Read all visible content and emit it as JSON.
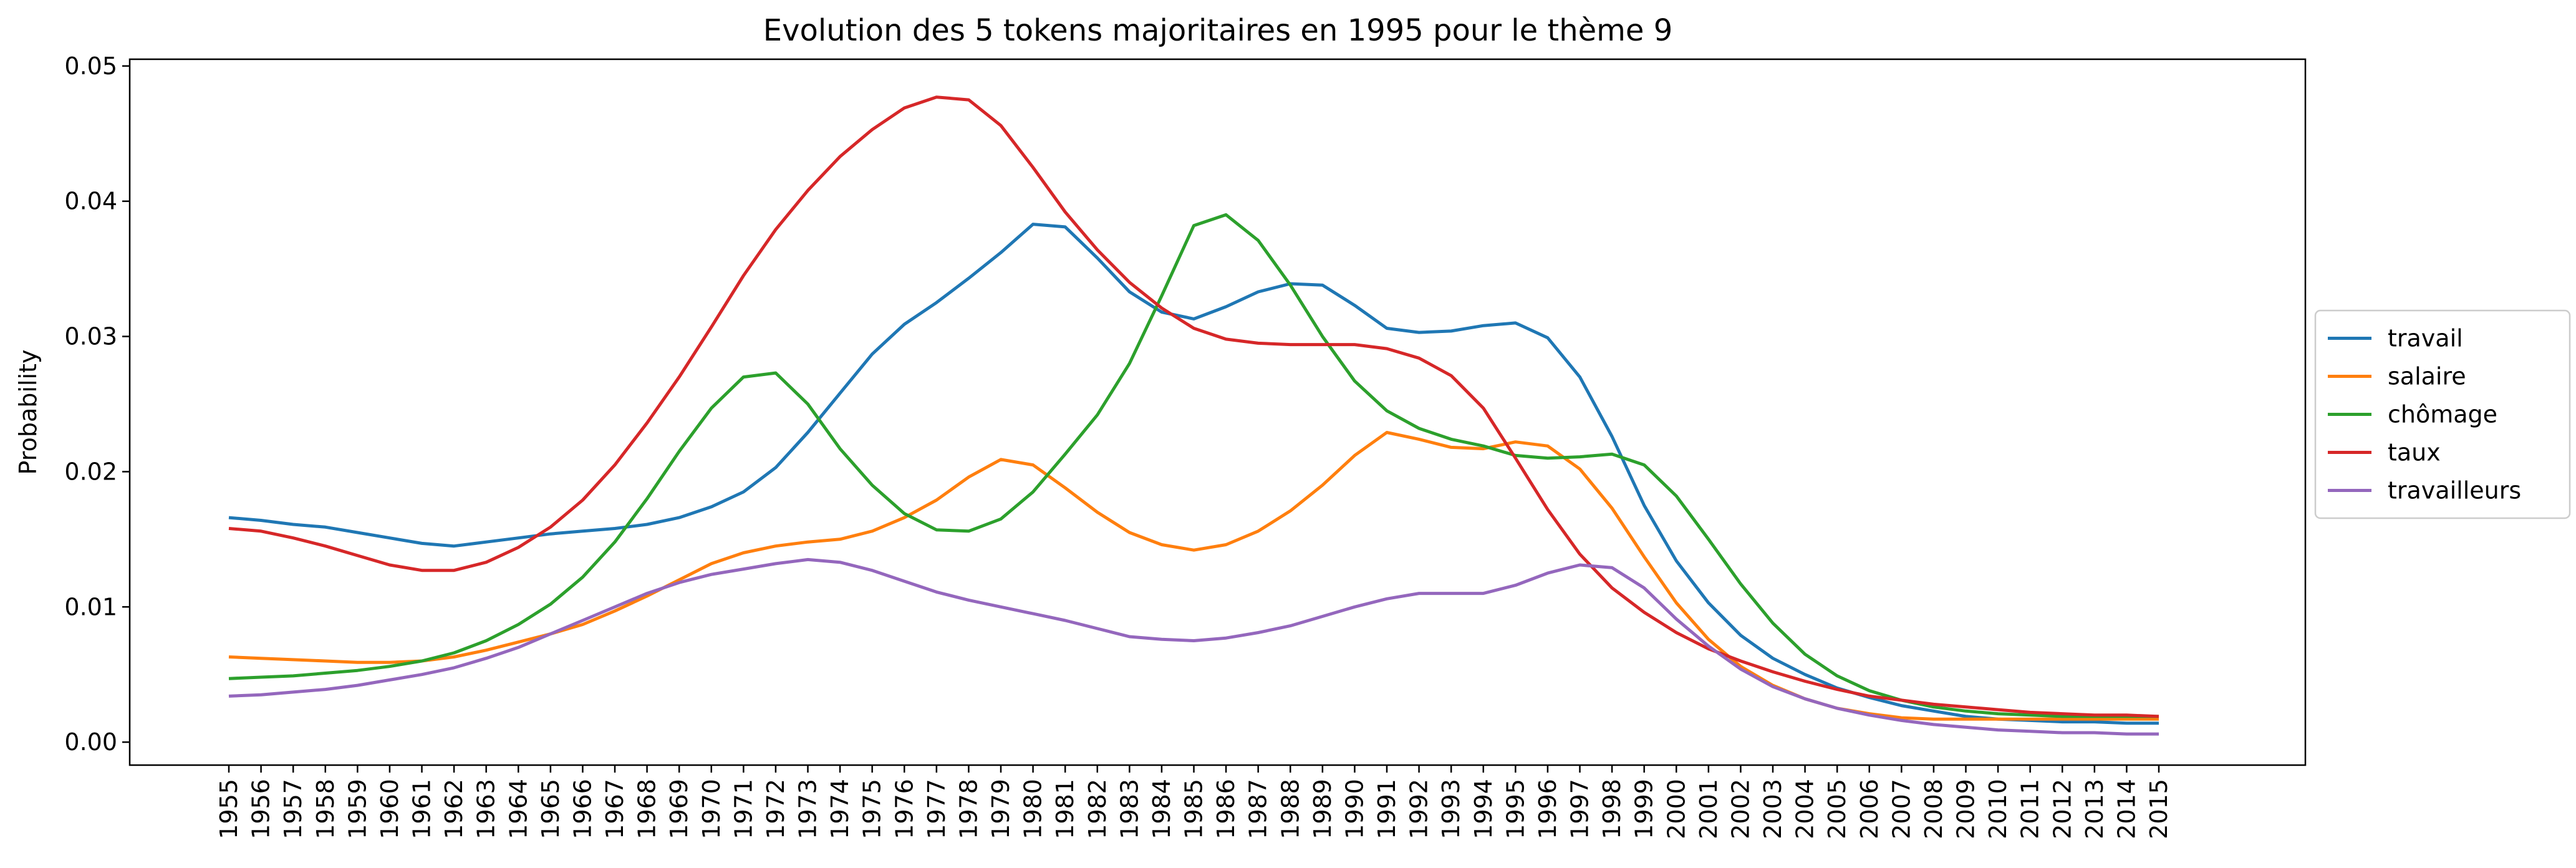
{
  "chart_data": {
    "type": "line",
    "title": "Evolution des 5 tokens majoritaires en 1995 pour le thème 9",
    "xlabel": "",
    "ylabel": "Probability",
    "ylim": [
      -0.0017,
      0.0505
    ],
    "yticks": [
      "0.00",
      "0.01",
      "0.02",
      "0.03",
      "0.04",
      "0.05"
    ],
    "grid": false,
    "legend_position": "center-right outside",
    "x": [
      "1955",
      "1956",
      "1957",
      "1958",
      "1959",
      "1960",
      "1961",
      "1962",
      "1963",
      "1964",
      "1965",
      "1966",
      "1967",
      "1968",
      "1969",
      "1970",
      "1971",
      "1972",
      "1973",
      "1974",
      "1975",
      "1976",
      "1977",
      "1978",
      "1979",
      "1980",
      "1981",
      "1982",
      "1983",
      "1984",
      "1985",
      "1986",
      "1987",
      "1988",
      "1989",
      "1990",
      "1991",
      "1992",
      "1993",
      "1994",
      "1995",
      "1996",
      "1997",
      "1998",
      "1999",
      "2000",
      "2001",
      "2002",
      "2003",
      "2004",
      "2005",
      "2006",
      "2007",
      "2008",
      "2009",
      "2010",
      "2011",
      "2012",
      "2013",
      "2014",
      "2015"
    ],
    "series": [
      {
        "name": "travail",
        "color": "#1f77b4",
        "values": [
          0.0166,
          0.0164,
          0.0161,
          0.0159,
          0.0155,
          0.0151,
          0.0147,
          0.0145,
          0.0148,
          0.0151,
          0.0154,
          0.0156,
          0.0158,
          0.0161,
          0.0166,
          0.0174,
          0.0185,
          0.0203,
          0.0229,
          0.0258,
          0.0287,
          0.0309,
          0.0325,
          0.0343,
          0.0362,
          0.0383,
          0.0381,
          0.0358,
          0.0333,
          0.0318,
          0.0313,
          0.0322,
          0.0333,
          0.0339,
          0.0338,
          0.0323,
          0.0306,
          0.0303,
          0.0304,
          0.0308,
          0.031,
          0.0299,
          0.027,
          0.0226,
          0.0175,
          0.0134,
          0.0103,
          0.0079,
          0.0062,
          0.005,
          0.004,
          0.0033,
          0.0027,
          0.0023,
          0.0019,
          0.0017,
          0.0016,
          0.0015,
          0.0015,
          0.0014,
          0.0014
        ]
      },
      {
        "name": "salaire",
        "color": "#ff7f0e",
        "values": [
          0.0063,
          0.0062,
          0.0061,
          0.006,
          0.0059,
          0.0059,
          0.006,
          0.0063,
          0.0068,
          0.0074,
          0.008,
          0.0087,
          0.0097,
          0.0108,
          0.012,
          0.0132,
          0.014,
          0.0145,
          0.0148,
          0.015,
          0.0156,
          0.0166,
          0.0179,
          0.0196,
          0.0209,
          0.0205,
          0.0188,
          0.017,
          0.0155,
          0.0146,
          0.0142,
          0.0146,
          0.0156,
          0.0171,
          0.019,
          0.0212,
          0.0229,
          0.0224,
          0.0218,
          0.0217,
          0.0222,
          0.0219,
          0.0202,
          0.0173,
          0.0137,
          0.0103,
          0.0076,
          0.0056,
          0.0042,
          0.0032,
          0.0025,
          0.0021,
          0.0018,
          0.0017,
          0.0017,
          0.0017,
          0.0017,
          0.0017,
          0.0017,
          0.0017,
          0.0017
        ]
      },
      {
        "name": "chômage",
        "color": "#2ca02c",
        "values": [
          0.0047,
          0.0048,
          0.0049,
          0.0051,
          0.0053,
          0.0056,
          0.006,
          0.0066,
          0.0075,
          0.0087,
          0.0102,
          0.0122,
          0.0148,
          0.018,
          0.0215,
          0.0247,
          0.027,
          0.0273,
          0.025,
          0.0217,
          0.019,
          0.0169,
          0.0157,
          0.0156,
          0.0165,
          0.0185,
          0.0213,
          0.0242,
          0.028,
          0.033,
          0.0382,
          0.039,
          0.0371,
          0.0338,
          0.03,
          0.0267,
          0.0245,
          0.0232,
          0.0224,
          0.0219,
          0.0212,
          0.021,
          0.0211,
          0.0213,
          0.0205,
          0.0182,
          0.015,
          0.0117,
          0.0088,
          0.0065,
          0.0049,
          0.0038,
          0.0031,
          0.0026,
          0.0023,
          0.0021,
          0.002,
          0.0019,
          0.0019,
          0.0019,
          0.0019
        ]
      },
      {
        "name": "taux",
        "color": "#d62728",
        "values": [
          0.0158,
          0.0156,
          0.0151,
          0.0145,
          0.0138,
          0.0131,
          0.0127,
          0.0127,
          0.0133,
          0.0144,
          0.0159,
          0.0179,
          0.0205,
          0.0236,
          0.027,
          0.0307,
          0.0345,
          0.0379,
          0.0408,
          0.0433,
          0.0453,
          0.0469,
          0.0477,
          0.0475,
          0.0456,
          0.0425,
          0.0392,
          0.0364,
          0.034,
          0.0321,
          0.0306,
          0.0298,
          0.0295,
          0.0294,
          0.0294,
          0.0294,
          0.0291,
          0.0284,
          0.0271,
          0.0247,
          0.021,
          0.0172,
          0.0139,
          0.0114,
          0.0096,
          0.0081,
          0.0069,
          0.006,
          0.0052,
          0.0045,
          0.0039,
          0.0034,
          0.0031,
          0.0028,
          0.0026,
          0.0024,
          0.0022,
          0.0021,
          0.002,
          0.002,
          0.0019
        ]
      },
      {
        "name": "travailleurs",
        "color": "#9467bd",
        "values": [
          0.0034,
          0.0035,
          0.0037,
          0.0039,
          0.0042,
          0.0046,
          0.005,
          0.0055,
          0.0062,
          0.007,
          0.008,
          0.009,
          0.01,
          0.011,
          0.0118,
          0.0124,
          0.0128,
          0.0132,
          0.0135,
          0.0133,
          0.0127,
          0.0119,
          0.0111,
          0.0105,
          0.01,
          0.0095,
          0.009,
          0.0084,
          0.0078,
          0.0076,
          0.0075,
          0.0077,
          0.0081,
          0.0086,
          0.0093,
          0.01,
          0.0106,
          0.011,
          0.011,
          0.011,
          0.0116,
          0.0125,
          0.0131,
          0.0129,
          0.0114,
          0.0091,
          0.0071,
          0.0054,
          0.0041,
          0.0032,
          0.0025,
          0.002,
          0.0016,
          0.0013,
          0.0011,
          0.0009,
          0.0008,
          0.0007,
          0.0007,
          0.0006,
          0.0006
        ]
      }
    ]
  }
}
